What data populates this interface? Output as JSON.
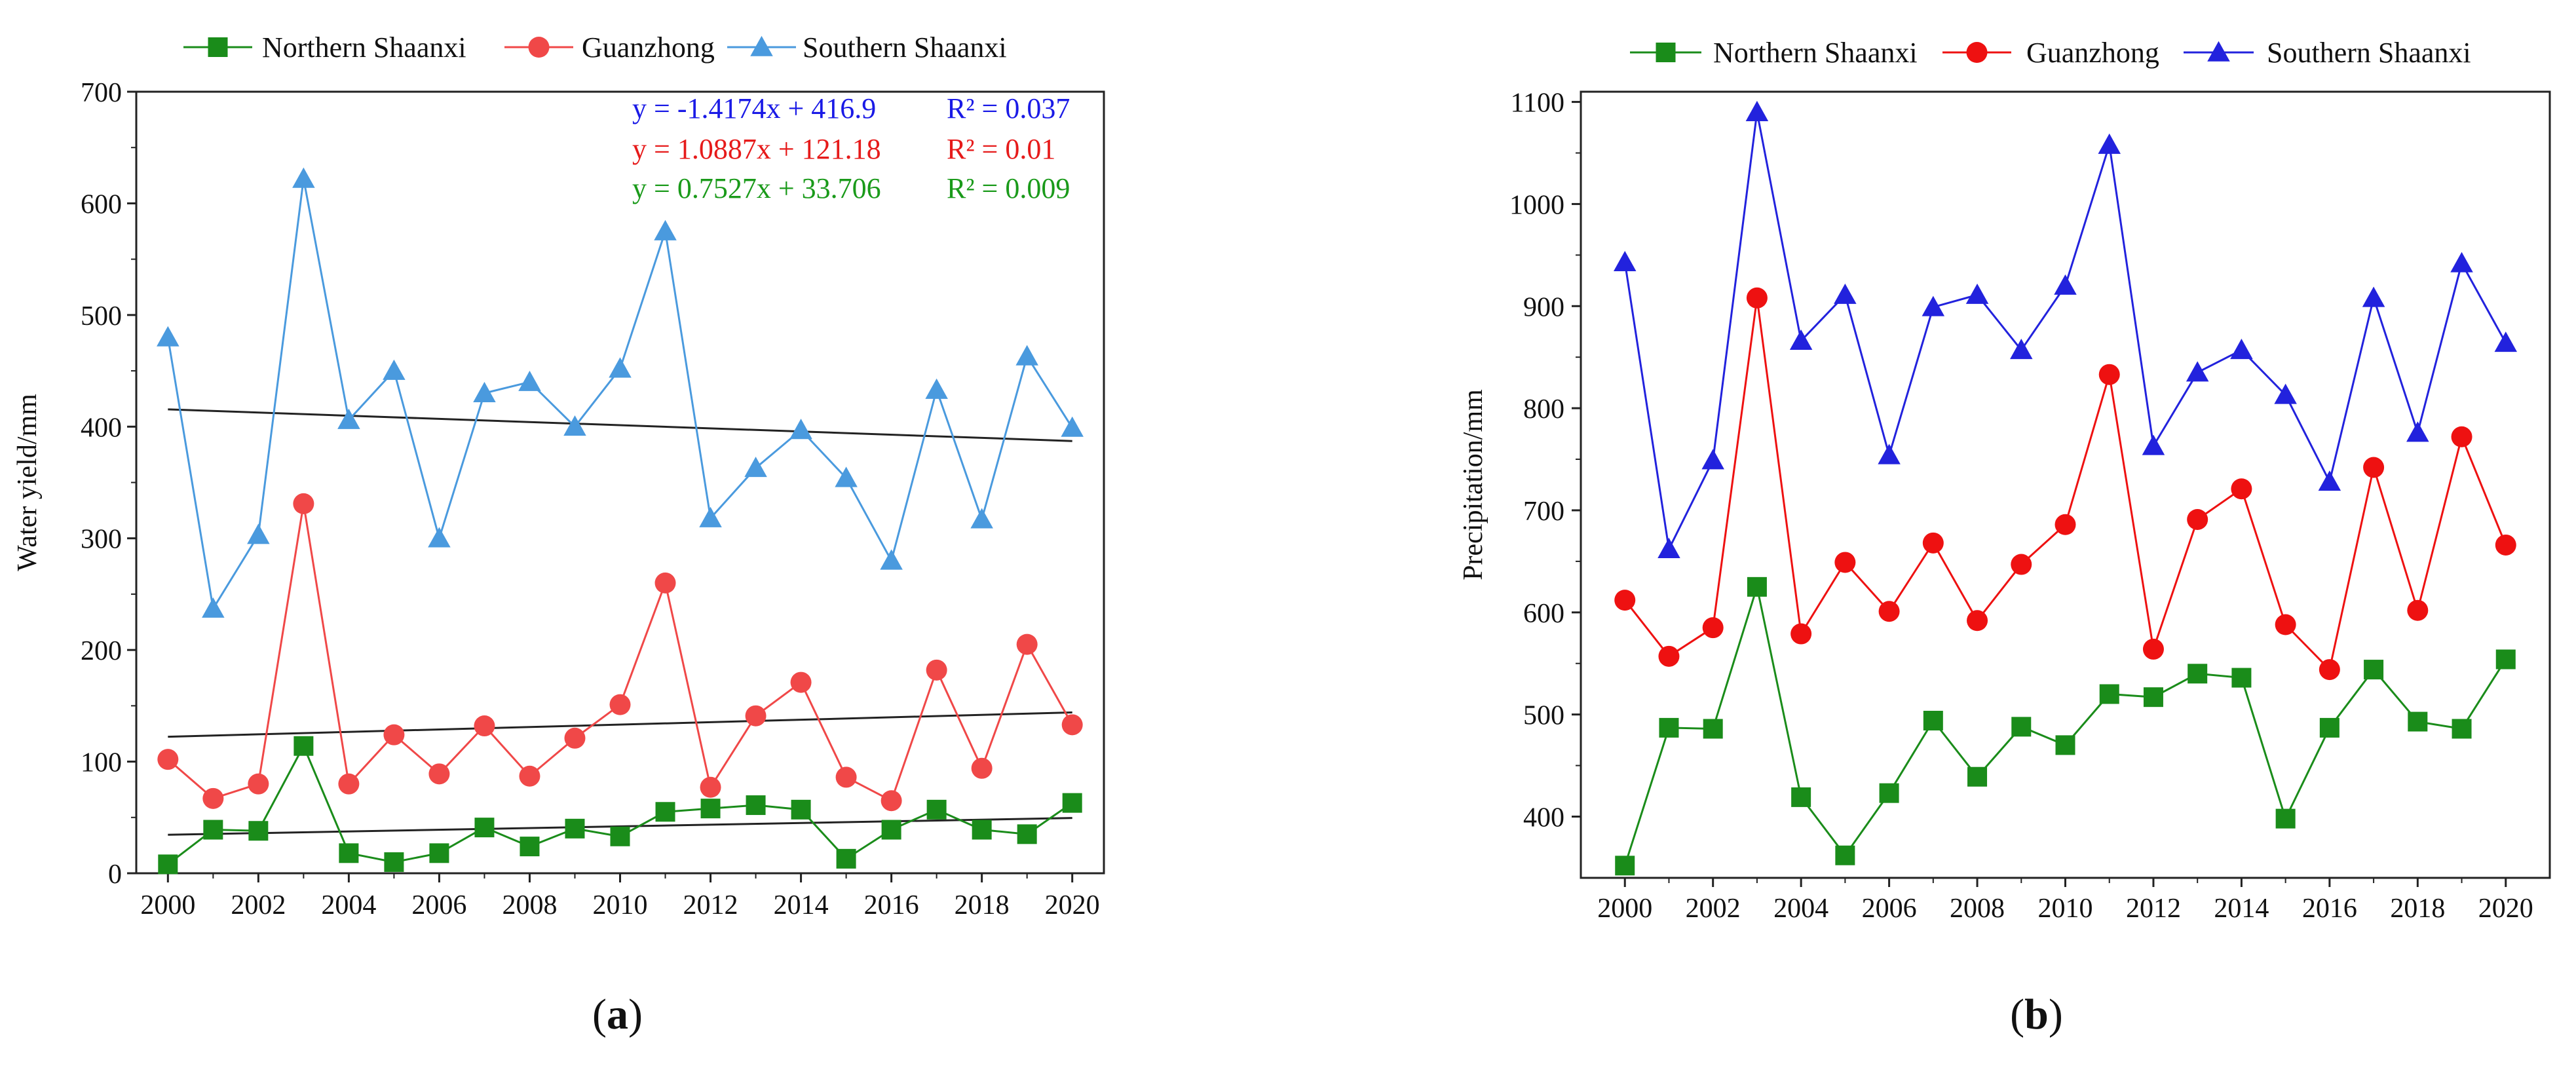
{
  "chart_data": [
    {
      "panel_label": "a",
      "type": "line",
      "xlabel": "",
      "ylabel": "Water yield/mm",
      "xlim": [
        1999.3,
        2020.7
      ],
      "ylim": [
        0,
        700
      ],
      "xticks": [
        "2000",
        "2002",
        "2004",
        "2006",
        "2008",
        "2010",
        "2012",
        "2014",
        "2016",
        "2018",
        "2020"
      ],
      "yticks": [
        "0",
        "100",
        "200",
        "300",
        "400",
        "500",
        "600",
        "700"
      ],
      "x": [
        2000,
        2001,
        2002,
        2003,
        2004,
        2005,
        2006,
        2007,
        2008,
        2009,
        2010,
        2011,
        2012,
        2013,
        2014,
        2015,
        2016,
        2017,
        2018,
        2019,
        2020
      ],
      "series": [
        {
          "name": "Northern Shaanxi",
          "color": "#1a8c1a",
          "marker": "square",
          "values": [
            8,
            39,
            38,
            114,
            18,
            10,
            18,
            41,
            24,
            40,
            33,
            55,
            58,
            61,
            57,
            13,
            39,
            57,
            39,
            35,
            63
          ]
        },
        {
          "name": "Guanzhong",
          "color": "#f04848",
          "marker": "circle",
          "values": [
            102,
            67,
            80,
            331,
            80,
            124,
            89,
            132,
            87,
            121,
            151,
            260,
            77,
            141,
            171,
            86,
            65,
            182,
            94,
            205,
            133
          ]
        },
        {
          "name": "Southern Shaanxi",
          "color": "#4a9ade",
          "marker": "triangle",
          "values": [
            480,
            237,
            303,
            622,
            406,
            450,
            300,
            430,
            440,
            400,
            452,
            575,
            318,
            363,
            397,
            354,
            280,
            433,
            317,
            463,
            399
          ]
        }
      ],
      "trendlines": [
        {
          "series": "Southern Shaanxi",
          "slope": -1.4174,
          "intercept": 416.9,
          "color": "#222222"
        },
        {
          "series": "Guanzhong",
          "slope": 1.0887,
          "intercept": 121.18,
          "color": "#222222"
        },
        {
          "series": "Northern Shaanxi",
          "slope": 0.7527,
          "intercept": 33.706,
          "color": "#222222"
        }
      ],
      "annotations": [
        {
          "equation": "y = -1.4174x + 416.9",
          "r2": "R² = 0.037",
          "color": "#1a1ae6"
        },
        {
          "equation": "y = 1.0887x + 121.18",
          "r2": "R² = 0.01",
          "color": "#e61a1a"
        },
        {
          "equation": "y = 0.7527x + 33.706",
          "r2": "R² = 0.009",
          "color": "#1a9a1a"
        }
      ],
      "legend_position": "top"
    },
    {
      "panel_label": "b",
      "type": "line",
      "xlabel": "",
      "ylabel": "Precipitation/mm",
      "xlim": [
        1999.0,
        2021.0
      ],
      "ylim": [
        340,
        1110
      ],
      "xticks": [
        "2000",
        "2002",
        "2004",
        "2006",
        "2008",
        "2010",
        "2012",
        "2014",
        "2016",
        "2018",
        "2020"
      ],
      "yticks": [
        "400",
        "500",
        "600",
        "700",
        "800",
        "900",
        "1000",
        "1100"
      ],
      "x": [
        2000,
        2001,
        2002,
        2003,
        2004,
        2005,
        2006,
        2007,
        2008,
        2009,
        2010,
        2011,
        2012,
        2013,
        2014,
        2015,
        2016,
        2017,
        2018,
        2019,
        2020
      ],
      "series": [
        {
          "name": "Northern Shaanxi",
          "color": "#1a8c1a",
          "marker": "square",
          "values": [
            352,
            487,
            486,
            625,
            419,
            362,
            423,
            494,
            439,
            488,
            470,
            520,
            517,
            540,
            536,
            398,
            487,
            544,
            493,
            486,
            554
          ]
        },
        {
          "name": "Guanzhong",
          "color": "#ee1111",
          "marker": "circle",
          "values": [
            612,
            557,
            585,
            908,
            579,
            649,
            601,
            668,
            592,
            647,
            686,
            833,
            564,
            691,
            721,
            588,
            544,
            742,
            602,
            772,
            666
          ]
        },
        {
          "name": "Southern Shaanxi",
          "color": "#2222dd",
          "marker": "triangle",
          "values": [
            943,
            662,
            749,
            1090,
            866,
            911,
            754,
            899,
            911,
            857,
            920,
            1058,
            763,
            835,
            857,
            813,
            728,
            908,
            776,
            942,
            864
          ]
        }
      ],
      "trendlines": [],
      "annotations": [],
      "legend_position": "top"
    }
  ]
}
